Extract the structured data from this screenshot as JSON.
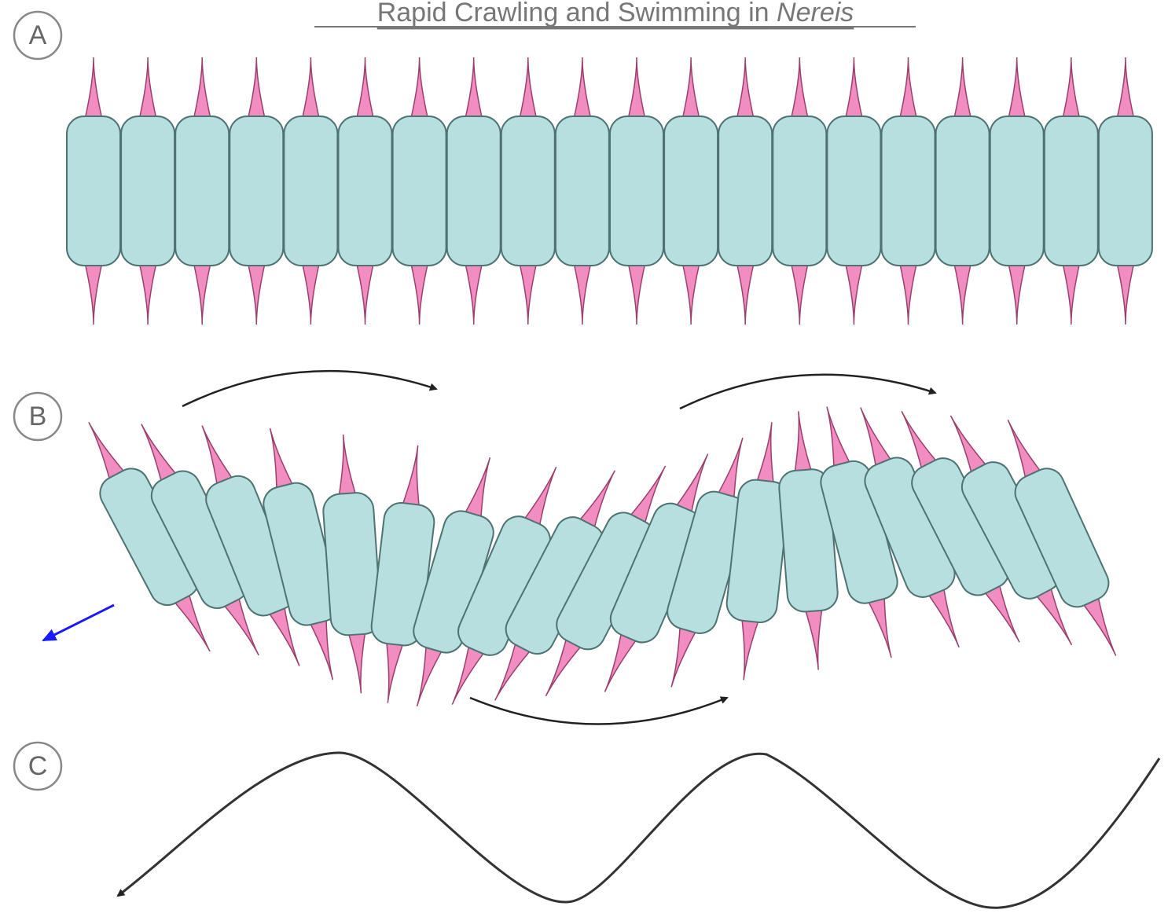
{
  "title": {
    "text": "Rapid Crawling and Swimming in",
    "genus": "Nereis"
  },
  "panels": [
    {
      "label": "A"
    },
    {
      "label": "B"
    },
    {
      "label": "C"
    }
  ]
}
